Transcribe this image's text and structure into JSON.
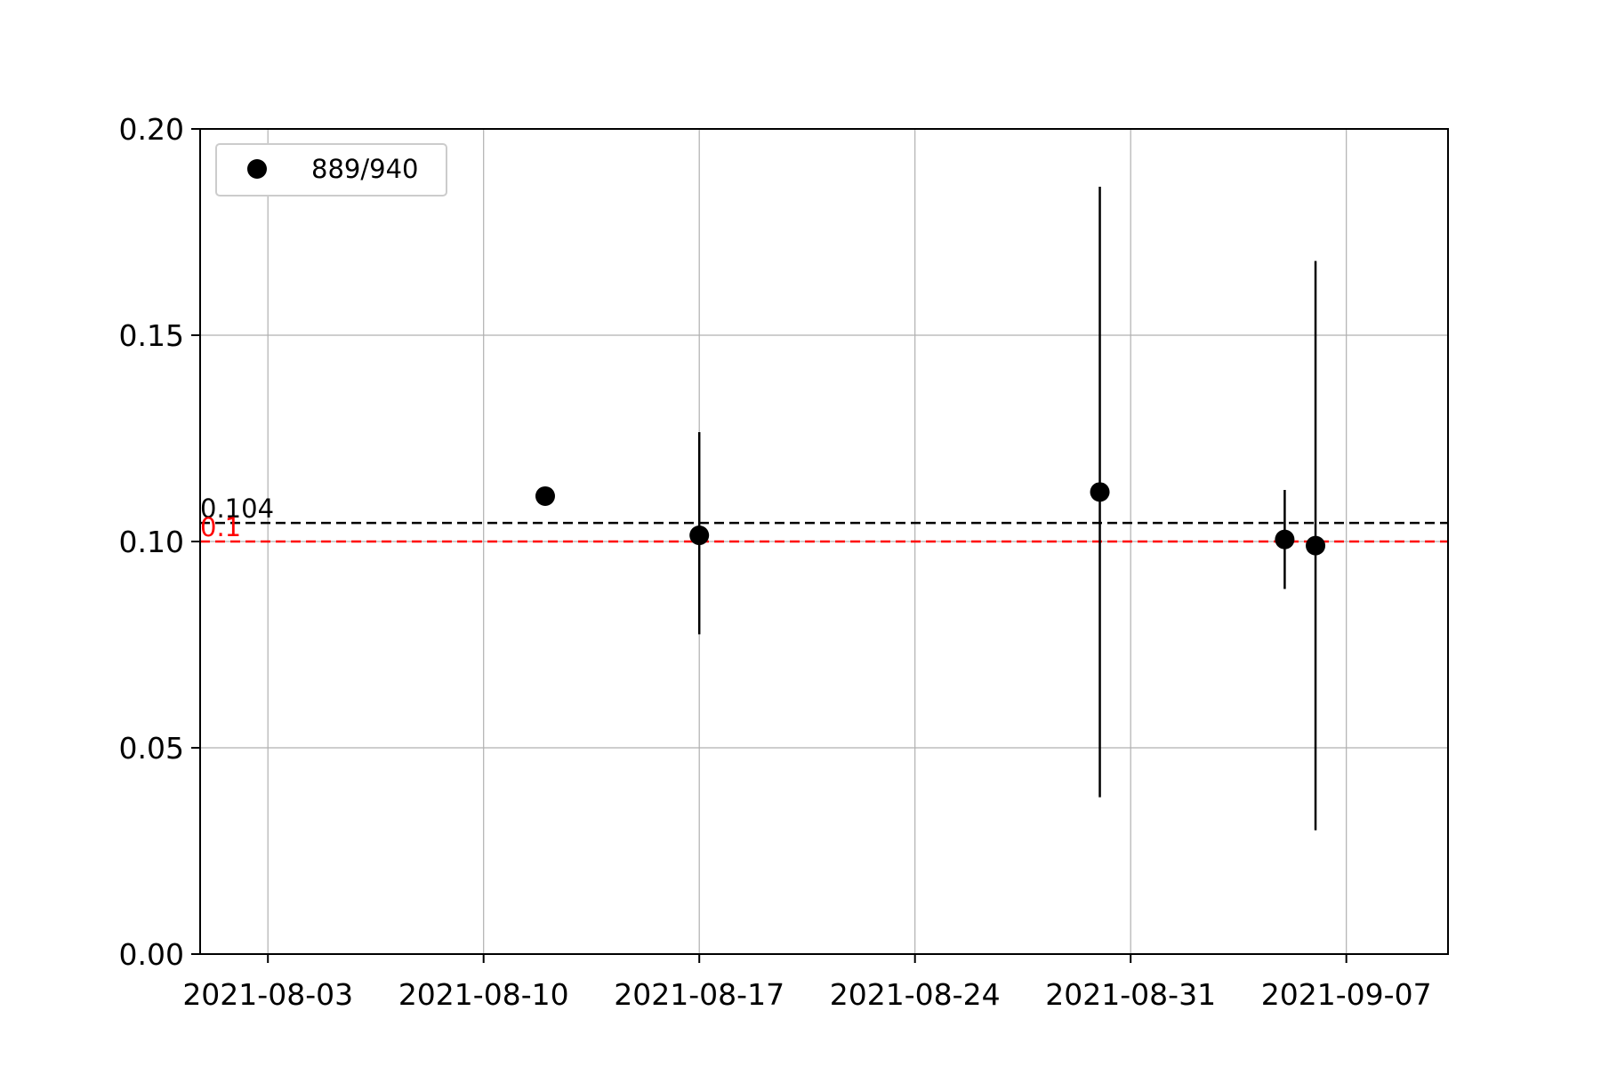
{
  "chart_data": {
    "type": "scatter",
    "title": "",
    "xlabel": "",
    "ylabel": "",
    "xlim": [
      "2021-08-01",
      "2021-09-10"
    ],
    "ylim": [
      0,
      0.2
    ],
    "grid": true,
    "legend_position": "upper-left",
    "x_ticks": [
      "2021-08-03",
      "2021-08-10",
      "2021-08-17",
      "2021-08-24",
      "2021-08-31",
      "2021-09-07"
    ],
    "y_ticks": [
      "0.00",
      "0.05",
      "0.10",
      "0.15",
      "0.20"
    ],
    "series": [
      {
        "name": "889/940",
        "color": "#000000",
        "points": [
          {
            "x": "2021-08-12",
            "y": 0.111,
            "yerr_low": 0.111,
            "yerr_high": 0.111
          },
          {
            "x": "2021-08-17",
            "y": 0.1015,
            "yerr_low": 0.0775,
            "yerr_high": 0.1265
          },
          {
            "x": "2021-08-30",
            "y": 0.112,
            "yerr_low": 0.038,
            "yerr_high": 0.186
          },
          {
            "x": "2021-09-05",
            "y": 0.1005,
            "yerr_low": 0.0885,
            "yerr_high": 0.1125
          },
          {
            "x": "2021-09-06",
            "y": 0.099,
            "yerr_low": 0.03,
            "yerr_high": 0.168
          }
        ]
      }
    ],
    "reference_lines": [
      {
        "y": 0.1045,
        "label": "0.104",
        "color": "#000000"
      },
      {
        "y": 0.1,
        "label": "0.1",
        "color": "#ff0000"
      }
    ]
  }
}
